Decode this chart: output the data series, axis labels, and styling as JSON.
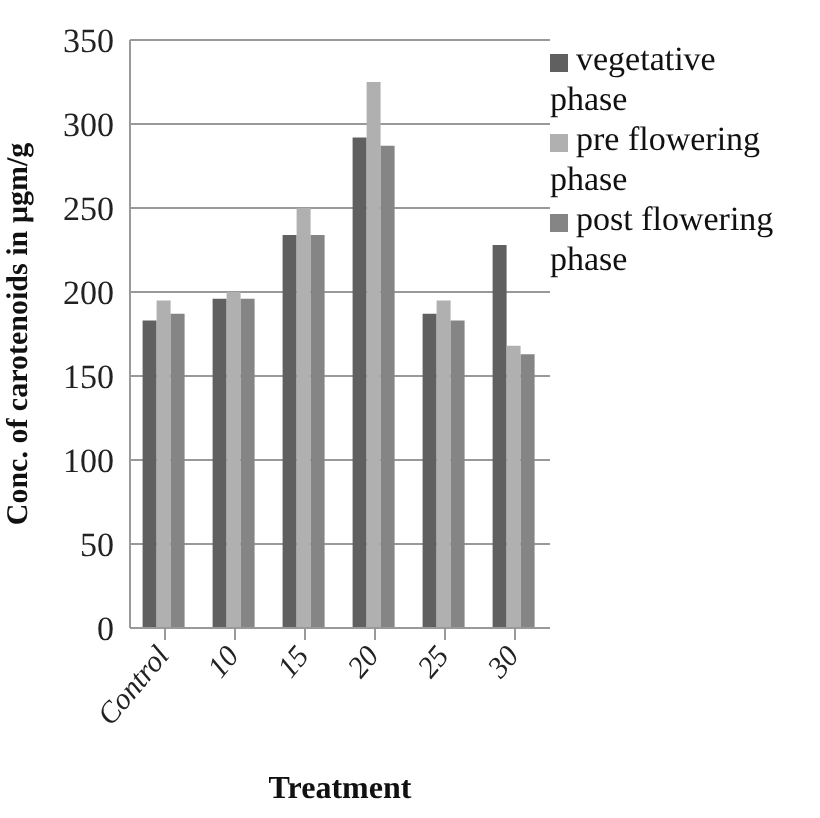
{
  "chart_data": {
    "type": "bar",
    "xlabel": "Treatment",
    "ylabel": "Conc. of carotenoids in µgm/g",
    "categories": [
      "Control",
      "10",
      "15",
      "20",
      "25",
      "30"
    ],
    "series": [
      {
        "name": "vegetative phase",
        "color": "#606060",
        "values": [
          183,
          196,
          234,
          292,
          187,
          228
        ]
      },
      {
        "name": "pre flowering phase",
        "color": "#b0b0b0",
        "values": [
          195,
          200,
          250,
          325,
          195,
          168
        ]
      },
      {
        "name": "post flowering phase",
        "color": "#858585",
        "values": [
          187,
          196,
          234,
          287,
          183,
          163
        ]
      }
    ],
    "ylim": [
      0,
      350
    ],
    "yticks": [
      0,
      50,
      100,
      150,
      200,
      250,
      300,
      350
    ],
    "grid": "y",
    "legend": "right"
  }
}
